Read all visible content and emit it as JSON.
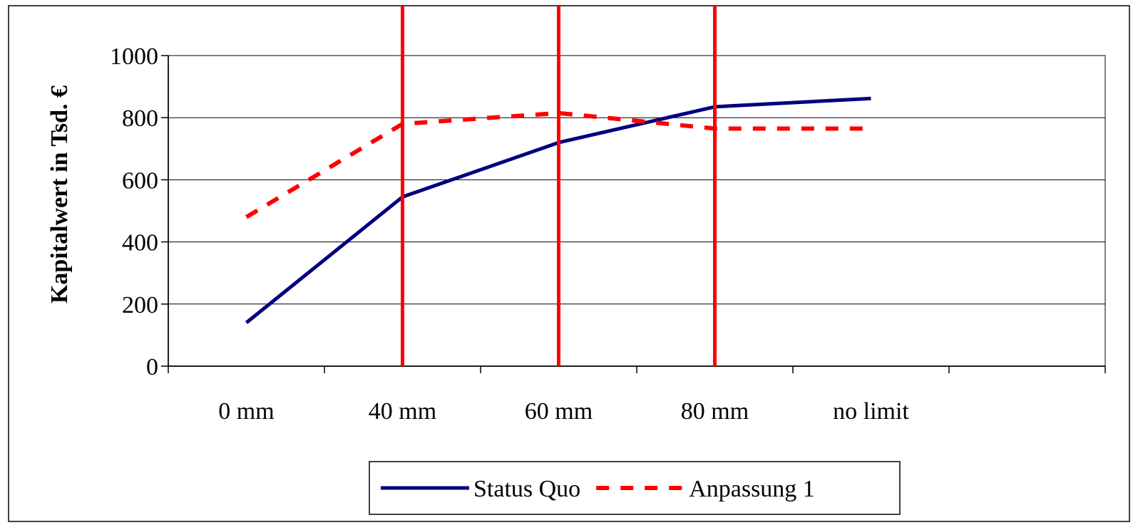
{
  "chart_data": {
    "type": "line",
    "categories": [
      "0 mm",
      "40 mm",
      "60 mm",
      "80 mm",
      "no limit"
    ],
    "x_extra_ticks": 1,
    "title": "",
    "xlabel": "",
    "ylabel": "Kapitalwert in Tsd. €",
    "ylim": [
      0,
      1000
    ],
    "yticks": [
      0,
      200,
      400,
      600,
      800,
      1000
    ],
    "grid": true,
    "legend_position": "bottom",
    "series": [
      {
        "name": "Status Quo",
        "color": "#000080",
        "style": "solid",
        "values": [
          140,
          545,
          720,
          835,
          862
        ]
      },
      {
        "name": "Anpassung 1",
        "color": "#ff0000",
        "style": "dashed",
        "values": [
          480,
          780,
          815,
          765,
          765
        ]
      }
    ],
    "vertical_markers": {
      "color": "#ff0000",
      "at_categories": [
        "40 mm",
        "60 mm",
        "80 mm"
      ]
    }
  }
}
